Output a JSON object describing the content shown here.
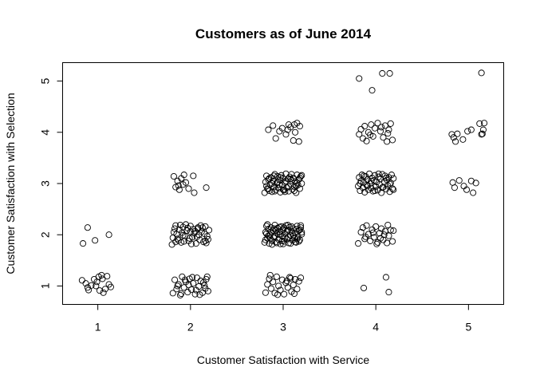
{
  "chart_data": {
    "type": "scatter",
    "title": "Customers as of June 2014",
    "xlabel": "Customer Satisfaction with Service",
    "ylabel": "Customer Satisfaction with Selection",
    "xlim": [
      0.62,
      5.38
    ],
    "ylim": [
      0.64,
      5.36
    ],
    "x_ticks": [
      1,
      2,
      3,
      4,
      5
    ],
    "y_ticks": [
      1,
      2,
      3,
      4,
      5
    ],
    "grid": false,
    "legend": "none",
    "marker": "open-circle",
    "jitter": true,
    "points": [
      [
        0.83,
        1.11
      ],
      [
        0.87,
        1.05
      ],
      [
        0.89,
        0.97
      ],
      [
        0.9,
        0.92
      ],
      [
        0.93,
        1.01
      ],
      [
        0.96,
        1.13
      ],
      [
        0.99,
        1.08
      ],
      [
        1.01,
        1.18
      ],
      [
        1.04,
        1.21
      ],
      [
        1.06,
        0.87
      ],
      [
        1.08,
        0.94
      ],
      [
        1.1,
        1.19
      ],
      [
        1.12,
        1.03
      ],
      [
        1.14,
        0.98
      ],
      [
        1.05,
        1.14
      ],
      [
        0.98,
        1.0
      ],
      [
        1.02,
        0.91
      ],
      [
        0.84,
        1.83
      ],
      [
        0.89,
        2.14
      ],
      [
        0.97,
        1.89
      ],
      [
        1.12,
        2.0
      ],
      [
        1.81,
        0.86
      ],
      [
        1.83,
        1.12
      ],
      [
        1.85,
        0.94
      ],
      [
        1.87,
        1.03
      ],
      [
        1.89,
        0.82
      ],
      [
        1.91,
        1.18
      ],
      [
        1.93,
        0.97
      ],
      [
        1.95,
        1.08
      ],
      [
        1.97,
        0.88
      ],
      [
        1.99,
        1.14
      ],
      [
        2.01,
        0.93
      ],
      [
        2.03,
        1.05
      ],
      [
        2.05,
        0.84
      ],
      [
        2.07,
        1.16
      ],
      [
        2.09,
        0.99
      ],
      [
        2.11,
        1.1
      ],
      [
        2.13,
        0.87
      ],
      [
        2.15,
        1.01
      ],
      [
        2.17,
        1.13
      ],
      [
        2.19,
        0.9
      ],
      [
        1.86,
        1.0
      ],
      [
        1.94,
        1.12
      ],
      [
        2.02,
        1.17
      ],
      [
        2.1,
        0.83
      ],
      [
        2.16,
        0.95
      ],
      [
        1.9,
        0.85
      ],
      [
        2.06,
        0.92
      ],
      [
        1.98,
        1.02
      ],
      [
        2.14,
        1.07
      ],
      [
        2.18,
        1.18
      ],
      [
        1.8,
        1.81
      ],
      [
        1.82,
        2.05
      ],
      [
        1.84,
        2.18
      ],
      [
        1.86,
        1.92
      ],
      [
        1.88,
        2.1
      ],
      [
        1.9,
        1.85
      ],
      [
        1.92,
        2.15
      ],
      [
        1.94,
        1.98
      ],
      [
        1.96,
        2.08
      ],
      [
        1.98,
        1.88
      ],
      [
        2.0,
        2.17
      ],
      [
        2.02,
        1.95
      ],
      [
        2.04,
        2.03
      ],
      [
        2.06,
        1.83
      ],
      [
        2.08,
        2.12
      ],
      [
        2.1,
        1.9
      ],
      [
        2.12,
        2.06
      ],
      [
        2.14,
        1.86
      ],
      [
        2.16,
        2.16
      ],
      [
        2.18,
        1.97
      ],
      [
        2.2,
        2.09
      ],
      [
        1.81,
        1.94
      ],
      [
        1.85,
        2.01
      ],
      [
        1.89,
        2.19
      ],
      [
        1.93,
        1.87
      ],
      [
        1.97,
        2.13
      ],
      [
        2.01,
        1.82
      ],
      [
        2.05,
        2.07
      ],
      [
        2.09,
        2.0
      ],
      [
        2.13,
        2.14
      ],
      [
        2.17,
        1.84
      ],
      [
        1.83,
        2.12
      ],
      [
        1.87,
        1.89
      ],
      [
        1.91,
        2.04
      ],
      [
        1.95,
        2.2
      ],
      [
        1.99,
        1.93
      ],
      [
        2.03,
        2.11
      ],
      [
        2.07,
        1.96
      ],
      [
        2.11,
        2.18
      ],
      [
        2.15,
        2.02
      ],
      [
        2.19,
        1.91
      ],
      [
        1.84,
        1.86
      ],
      [
        1.92,
        1.99
      ],
      [
        2.0,
        2.06
      ],
      [
        2.08,
        2.14
      ],
      [
        2.16,
        1.88
      ],
      [
        1.82,
        3.14
      ],
      [
        1.84,
        2.93
      ],
      [
        1.86,
        3.05
      ],
      [
        1.88,
        2.88
      ],
      [
        1.9,
        3.1
      ],
      [
        1.92,
        2.98
      ],
      [
        1.95,
        3.02
      ],
      [
        1.98,
        2.9
      ],
      [
        2.03,
        3.15
      ],
      [
        2.04,
        2.82
      ],
      [
        1.93,
        3.17
      ],
      [
        1.87,
        2.96
      ],
      [
        2.17,
        2.92
      ],
      [
        2.81,
        0.87
      ],
      [
        2.83,
        1.03
      ],
      [
        2.85,
        1.14
      ],
      [
        2.87,
        0.95
      ],
      [
        2.89,
        1.08
      ],
      [
        2.91,
        0.86
      ],
      [
        2.93,
        1.18
      ],
      [
        2.95,
        1.0
      ],
      [
        2.97,
        0.92
      ],
      [
        2.99,
        1.12
      ],
      [
        3.01,
        0.84
      ],
      [
        3.03,
        1.06
      ],
      [
        3.05,
        0.97
      ],
      [
        3.07,
        1.17
      ],
      [
        3.09,
        0.89
      ],
      [
        3.11,
        1.02
      ],
      [
        3.13,
        1.13
      ],
      [
        3.15,
        0.94
      ],
      [
        3.17,
        1.09
      ],
      [
        3.19,
        1.16
      ],
      [
        2.86,
        1.21
      ],
      [
        2.94,
        0.83
      ],
      [
        3.04,
        1.1
      ],
      [
        3.12,
        0.85
      ],
      [
        3.08,
        1.15
      ],
      [
        2.8,
        1.85
      ],
      [
        2.81,
        2.05
      ],
      [
        2.82,
        2.17
      ],
      [
        2.83,
        1.93
      ],
      [
        2.84,
        2.11
      ],
      [
        2.85,
        1.83
      ],
      [
        2.86,
        2.0
      ],
      [
        2.87,
        2.14
      ],
      [
        2.88,
        1.88
      ],
      [
        2.89,
        2.08
      ],
      [
        2.9,
        1.95
      ],
      [
        2.91,
        2.19
      ],
      [
        2.92,
        1.86
      ],
      [
        2.93,
        2.03
      ],
      [
        2.94,
        2.13
      ],
      [
        2.95,
        1.91
      ],
      [
        2.96,
        2.06
      ],
      [
        2.97,
        1.82
      ],
      [
        2.98,
        2.16
      ],
      [
        2.99,
        1.97
      ],
      [
        3.0,
        2.1
      ],
      [
        3.01,
        1.87
      ],
      [
        3.02,
        2.02
      ],
      [
        3.03,
        2.18
      ],
      [
        3.04,
        1.92
      ],
      [
        3.05,
        2.09
      ],
      [
        3.06,
        1.84
      ],
      [
        3.07,
        2.15
      ],
      [
        3.08,
        1.99
      ],
      [
        3.09,
        2.07
      ],
      [
        3.1,
        1.89
      ],
      [
        3.11,
        2.12
      ],
      [
        3.12,
        1.94
      ],
      [
        3.13,
        2.04
      ],
      [
        3.14,
        1.85
      ],
      [
        3.15,
        2.17
      ],
      [
        3.16,
        1.96
      ],
      [
        3.17,
        2.08
      ],
      [
        3.18,
        1.9
      ],
      [
        3.19,
        2.14
      ],
      [
        3.2,
        2.01
      ],
      [
        2.81,
        1.9
      ],
      [
        2.84,
        1.98
      ],
      [
        2.87,
        2.06
      ],
      [
        2.9,
        2.12
      ],
      [
        2.93,
        1.84
      ],
      [
        2.96,
        2.15
      ],
      [
        2.99,
        1.88
      ],
      [
        3.02,
        1.94
      ],
      [
        3.05,
        2.19
      ],
      [
        3.08,
        1.83
      ],
      [
        3.11,
        1.98
      ],
      [
        3.14,
        2.11
      ],
      [
        3.17,
        1.87
      ],
      [
        3.2,
        2.05
      ],
      [
        2.83,
        2.2
      ],
      [
        2.88,
        1.81
      ],
      [
        2.92,
        2.09
      ],
      [
        2.97,
        2.01
      ],
      [
        3.01,
        2.14
      ],
      [
        3.06,
        1.95
      ],
      [
        3.1,
        2.03
      ],
      [
        3.15,
        1.92
      ],
      [
        3.19,
        2.18
      ],
      [
        2.86,
        1.93
      ],
      [
        2.95,
        2.0
      ],
      [
        3.04,
        2.07
      ],
      [
        3.13,
        1.86
      ],
      [
        2.82,
        2.02
      ],
      [
        2.91,
        1.97
      ],
      [
        3.0,
        1.82
      ],
      [
        3.09,
        2.16
      ],
      [
        3.18,
        2.1
      ],
      [
        2.8,
        2.82
      ],
      [
        2.81,
        3.03
      ],
      [
        2.82,
        3.15
      ],
      [
        2.83,
        2.9
      ],
      [
        2.84,
        3.08
      ],
      [
        2.85,
        2.86
      ],
      [
        2.86,
        2.98
      ],
      [
        2.87,
        3.12
      ],
      [
        2.88,
        2.84
      ],
      [
        2.89,
        3.05
      ],
      [
        2.9,
        2.93
      ],
      [
        2.91,
        3.18
      ],
      [
        2.92,
        2.88
      ],
      [
        2.93,
        3.01
      ],
      [
        2.94,
        3.14
      ],
      [
        2.95,
        2.91
      ],
      [
        2.96,
        3.07
      ],
      [
        2.97,
        2.83
      ],
      [
        2.98,
        3.16
      ],
      [
        2.99,
        2.96
      ],
      [
        3.0,
        3.1
      ],
      [
        3.01,
        2.87
      ],
      [
        3.02,
        3.02
      ],
      [
        3.03,
        3.19
      ],
      [
        3.04,
        2.92
      ],
      [
        3.05,
        3.09
      ],
      [
        3.06,
        2.85
      ],
      [
        3.07,
        3.13
      ],
      [
        3.08,
        2.99
      ],
      [
        3.09,
        3.06
      ],
      [
        3.1,
        2.89
      ],
      [
        3.11,
        3.11
      ],
      [
        3.12,
        2.94
      ],
      [
        3.13,
        3.04
      ],
      [
        3.14,
        2.82
      ],
      [
        3.15,
        3.17
      ],
      [
        3.16,
        2.97
      ],
      [
        3.17,
        3.08
      ],
      [
        3.18,
        2.9
      ],
      [
        3.19,
        3.14
      ],
      [
        3.2,
        3.0
      ],
      [
        2.82,
        2.95
      ],
      [
        2.85,
        3.1
      ],
      [
        2.88,
        3.0
      ],
      [
        2.91,
        2.85
      ],
      [
        2.94,
        3.03
      ],
      [
        2.97,
        3.12
      ],
      [
        3.0,
        2.88
      ],
      [
        3.03,
        3.05
      ],
      [
        3.06,
        2.94
      ],
      [
        3.09,
        3.18
      ],
      [
        3.12,
        2.86
      ],
      [
        3.15,
        3.01
      ],
      [
        3.18,
        3.11
      ],
      [
        2.84,
        2.89
      ],
      [
        2.9,
        3.15
      ],
      [
        2.96,
        2.98
      ],
      [
        3.02,
        2.84
      ],
      [
        3.08,
        3.09
      ],
      [
        3.14,
        2.95
      ],
      [
        3.2,
        3.16
      ],
      [
        2.84,
        4.05
      ],
      [
        2.89,
        4.13
      ],
      [
        2.92,
        3.88
      ],
      [
        2.96,
        4.02
      ],
      [
        2.99,
        4.08
      ],
      [
        3.03,
        3.96
      ],
      [
        3.06,
        4.15
      ],
      [
        3.08,
        4.1
      ],
      [
        3.11,
        3.84
      ],
      [
        3.13,
        4.0
      ],
      [
        3.15,
        4.18
      ],
      [
        3.17,
        3.82
      ],
      [
        3.18,
        4.12
      ],
      [
        3.05,
        4.05
      ],
      [
        3.12,
        4.15
      ],
      [
        3.87,
        0.96
      ],
      [
        4.11,
        1.17
      ],
      [
        4.14,
        0.88
      ],
      [
        3.81,
        1.83
      ],
      [
        3.84,
        2.05
      ],
      [
        3.86,
        2.14
      ],
      [
        3.88,
        1.92
      ],
      [
        3.9,
        2.18
      ],
      [
        3.92,
        2.01
      ],
      [
        3.94,
        1.88
      ],
      [
        3.96,
        2.1
      ],
      [
        3.98,
        1.95
      ],
      [
        4.0,
        2.16
      ],
      [
        4.02,
        1.85
      ],
      [
        4.04,
        2.03
      ],
      [
        4.06,
        2.12
      ],
      [
        4.08,
        1.9
      ],
      [
        4.1,
        2.07
      ],
      [
        4.12,
        1.84
      ],
      [
        4.14,
        1.98
      ],
      [
        4.16,
        2.09
      ],
      [
        4.18,
        1.87
      ],
      [
        4.19,
        2.08
      ],
      [
        3.89,
        1.96
      ],
      [
        3.97,
        2.04
      ],
      [
        4.05,
        1.93
      ],
      [
        4.13,
        2.19
      ],
      [
        4.01,
        1.82
      ],
      [
        4.09,
        2.0
      ],
      [
        3.81,
        2.95
      ],
      [
        3.82,
        3.12
      ],
      [
        3.83,
        2.86
      ],
      [
        3.84,
        3.05
      ],
      [
        3.85,
        3.17
      ],
      [
        3.86,
        2.92
      ],
      [
        3.87,
        3.02
      ],
      [
        3.88,
        2.83
      ],
      [
        3.89,
        3.14
      ],
      [
        3.9,
        2.97
      ],
      [
        3.91,
        3.08
      ],
      [
        3.92,
        2.88
      ],
      [
        3.93,
        3.19
      ],
      [
        3.94,
        3.0
      ],
      [
        3.95,
        2.91
      ],
      [
        3.96,
        3.11
      ],
      [
        3.97,
        2.85
      ],
      [
        3.98,
        3.06
      ],
      [
        3.99,
        3.16
      ],
      [
        4.0,
        2.94
      ],
      [
        4.01,
        3.03
      ],
      [
        4.02,
        2.87
      ],
      [
        4.03,
        3.13
      ],
      [
        4.04,
        2.98
      ],
      [
        4.05,
        3.09
      ],
      [
        4.06,
        2.82
      ],
      [
        4.07,
        3.18
      ],
      [
        4.08,
        2.93
      ],
      [
        4.09,
        3.04
      ],
      [
        4.1,
        3.15
      ],
      [
        4.11,
        2.89
      ],
      [
        4.12,
        3.07
      ],
      [
        4.13,
        2.96
      ],
      [
        4.14,
        3.12
      ],
      [
        4.15,
        2.84
      ],
      [
        4.16,
        3.01
      ],
      [
        4.17,
        3.17
      ],
      [
        4.18,
        2.9
      ],
      [
        4.19,
        3.1
      ],
      [
        3.83,
        3.0
      ],
      [
        3.87,
        3.15
      ],
      [
        3.91,
        2.95
      ],
      [
        3.95,
        3.05
      ],
      [
        3.99,
        2.86
      ],
      [
        4.03,
        3.19
      ],
      [
        4.07,
        2.92
      ],
      [
        4.11,
        3.11
      ],
      [
        4.15,
        2.99
      ],
      [
        4.19,
        2.88
      ],
      [
        3.82,
        3.96
      ],
      [
        3.84,
        4.06
      ],
      [
        3.86,
        3.88
      ],
      [
        3.88,
        4.12
      ],
      [
        3.9,
        3.83
      ],
      [
        3.92,
        4.0
      ],
      [
        3.95,
        4.15
      ],
      [
        3.97,
        3.92
      ],
      [
        3.99,
        4.08
      ],
      [
        4.02,
        4.18
      ],
      [
        4.05,
        4.02
      ],
      [
        4.08,
        3.9
      ],
      [
        4.1,
        4.13
      ],
      [
        4.12,
        3.82
      ],
      [
        4.14,
        4.05
      ],
      [
        4.16,
        4.17
      ],
      [
        4.18,
        3.85
      ],
      [
        4.13,
        3.98
      ],
      [
        3.94,
        3.95
      ],
      [
        4.06,
        4.1
      ],
      [
        3.82,
        5.05
      ],
      [
        3.96,
        4.82
      ],
      [
        4.07,
        5.15
      ],
      [
        4.15,
        5.15
      ],
      [
        4.83,
        3.02
      ],
      [
        4.85,
        2.92
      ],
      [
        4.9,
        3.06
      ],
      [
        4.95,
        2.95
      ],
      [
        4.98,
        2.88
      ],
      [
        5.03,
        3.05
      ],
      [
        5.05,
        2.82
      ],
      [
        5.08,
        3.01
      ],
      [
        4.82,
        3.96
      ],
      [
        4.84,
        3.9
      ],
      [
        4.86,
        3.82
      ],
      [
        4.88,
        3.97
      ],
      [
        4.94,
        3.86
      ],
      [
        4.99,
        4.02
      ],
      [
        5.03,
        4.05
      ],
      [
        5.12,
        4.17
      ],
      [
        5.14,
        3.96
      ],
      [
        5.16,
        4.05
      ],
      [
        5.17,
        4.18
      ],
      [
        5.15,
        3.97
      ],
      [
        5.14,
        5.16
      ]
    ]
  }
}
